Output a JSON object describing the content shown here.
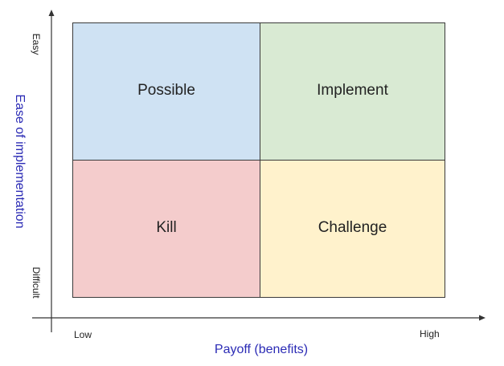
{
  "colors": {
    "possible": "#cfe2f3",
    "implement": "#d9ead3",
    "kill": "#f4cccc",
    "challenge": "#fff2cc",
    "axis_title": "#2b2bb5"
  },
  "quadrants": {
    "top_left": "Possible",
    "top_right": "Implement",
    "bottom_left": "Kill",
    "bottom_right": "Challenge"
  },
  "x_axis": {
    "title": "Payoff (benefits)",
    "low_label": "Low",
    "high_label": "High"
  },
  "y_axis": {
    "title": "Ease of implementation",
    "high_label": "Easy",
    "low_label": "Difficult"
  }
}
